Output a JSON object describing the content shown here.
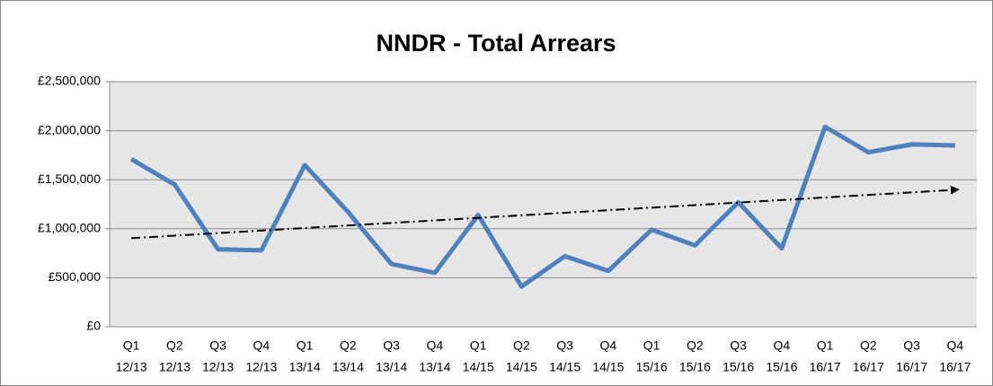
{
  "chart_data": {
    "type": "line",
    "title": "NNDR - Total Arrears",
    "categories": [
      [
        "Q1",
        "12/13"
      ],
      [
        "Q2",
        "12/13"
      ],
      [
        "Q3",
        "12/13"
      ],
      [
        "Q4",
        "12/13"
      ],
      [
        "Q1",
        "13/14"
      ],
      [
        "Q2",
        "13/14"
      ],
      [
        "Q3",
        "13/14"
      ],
      [
        "Q4",
        "13/14"
      ],
      [
        "Q1",
        "14/15"
      ],
      [
        "Q2",
        "14/15"
      ],
      [
        "Q3",
        "14/15"
      ],
      [
        "Q4",
        "14/15"
      ],
      [
        "Q1",
        "15/16"
      ],
      [
        "Q2",
        "15/16"
      ],
      [
        "Q3",
        "15/16"
      ],
      [
        "Q4",
        "15/16"
      ],
      [
        "Q1",
        "16/17"
      ],
      [
        "Q2",
        "16/17"
      ],
      [
        "Q3",
        "16/17"
      ],
      [
        "Q4",
        "16/17"
      ]
    ],
    "series": [
      {
        "color": "#4f81bd",
        "values": [
          1710000,
          1450000,
          790000,
          780000,
          1650000,
          1170000,
          640000,
          550000,
          1140000,
          410000,
          720000,
          570000,
          990000,
          830000,
          1270000,
          800000,
          2040000,
          1780000,
          1860000,
          1850000
        ]
      }
    ],
    "trendline": "linear",
    "trendline_color": "#000000",
    "ylim": [
      0,
      2500000
    ],
    "yticks": [
      {
        "value": 0,
        "label": "£0"
      },
      {
        "value": 500000,
        "label": "£500,000"
      },
      {
        "value": 1000000,
        "label": "£1,000,000"
      },
      {
        "value": 1500000,
        "label": "£1,500,000"
      },
      {
        "value": 2000000,
        "label": "£2,000,000"
      },
      {
        "value": 2500000,
        "label": "£2,500,000"
      }
    ],
    "grid": true,
    "plot_background": "#e6e6e6"
  }
}
